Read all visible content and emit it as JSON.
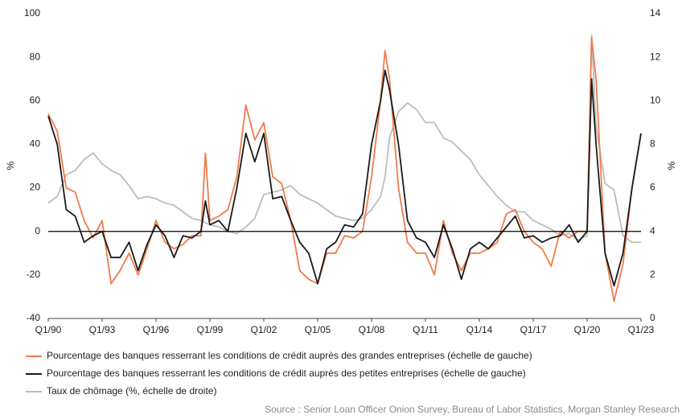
{
  "chart_data": {
    "type": "line",
    "ylabel": "%",
    "y2label": "%",
    "source": "Source : Senior Loan Officer Onion Survey, Bureau of Labor Statistics, Morgan Stanley Research",
    "xlim": [
      1990,
      2023
    ],
    "xticks": [
      {
        "value": 1990,
        "label": "Q1/90"
      },
      {
        "value": 1993,
        "label": "Q1/93"
      },
      {
        "value": 1996,
        "label": "Q1/96"
      },
      {
        "value": 1999,
        "label": "Q1/99"
      },
      {
        "value": 2002,
        "label": "Q1/02"
      },
      {
        "value": 2005,
        "label": "Q1/05"
      },
      {
        "value": 2008,
        "label": "Q1/08"
      },
      {
        "value": 2011,
        "label": "Q1/11"
      },
      {
        "value": 2014,
        "label": "Q1/14"
      },
      {
        "value": 2017,
        "label": "Q1/17"
      },
      {
        "value": 2020,
        "label": "Q1/20"
      },
      {
        "value": 2023,
        "label": "Q1/23"
      }
    ],
    "ylim": [
      -40,
      100
    ],
    "yticks": [
      -40,
      -20,
      0,
      20,
      40,
      60,
      80,
      100
    ],
    "y2lim": [
      0,
      14
    ],
    "y2ticks": [
      0,
      2,
      4,
      6,
      8,
      10,
      12,
      14
    ],
    "reference_line": 0,
    "grid": false,
    "x": [
      1990,
      1990.5,
      1991,
      1991.5,
      1992,
      1992.5,
      1993,
      1993.5,
      1994,
      1994.5,
      1995,
      1995.5,
      1996,
      1996.5,
      1997,
      1997.5,
      1998,
      1998.5,
      1998.75,
      1999,
      1999.5,
      2000,
      2000.5,
      2001,
      2001.5,
      2002,
      2002.5,
      2003,
      2003.5,
      2004,
      2004.5,
      2005,
      2005.5,
      2006,
      2006.5,
      2007,
      2007.5,
      2008,
      2008.5,
      2008.75,
      2009,
      2009.5,
      2010,
      2010.5,
      2011,
      2011.5,
      2012,
      2012.5,
      2013,
      2013.5,
      2014,
      2014.5,
      2015,
      2015.5,
      2016,
      2016.5,
      2017,
      2017.5,
      2018,
      2018.5,
      2019,
      2019.5,
      2020,
      2020.25,
      2020.5,
      2021,
      2021.5,
      2022,
      2022.5,
      2023
    ],
    "series": [
      {
        "name": "Pourcentage des banques resserrant les conditions de crédit auprès des grandes entreprises (échelle de gauche)",
        "color": "#f07b4d",
        "values": [
          54,
          46,
          20,
          18,
          5,
          -3,
          5,
          -24,
          -18,
          -10,
          -20,
          -8,
          5,
          -5,
          -8,
          -6,
          -2,
          -2,
          36,
          5,
          7,
          10,
          25,
          58,
          42,
          50,
          25,
          22,
          5,
          -18,
          -22,
          -24,
          -10,
          -10,
          -2,
          -3,
          0,
          25,
          60,
          83,
          70,
          20,
          -5,
          -10,
          -10,
          -20,
          5,
          -10,
          -18,
          -10,
          -10,
          -8,
          -5,
          8,
          10,
          0,
          -5,
          -8,
          -16,
          0,
          -3,
          0,
          0,
          89,
          70,
          -10,
          -32,
          -15,
          20,
          45
        ]
      },
      {
        "name": "Pourcentage des banques resserrant les conditions de crédit auprès des petites entreprises (échelle de gauche)",
        "color": "#1a1a1a",
        "values": [
          53,
          40,
          10,
          7,
          -5,
          -2,
          0,
          -12,
          -12,
          -5,
          -18,
          -6,
          3,
          -2,
          -12,
          -2,
          -3,
          0,
          14,
          3,
          5,
          0,
          20,
          45,
          32,
          45,
          15,
          16,
          5,
          -5,
          -10,
          -24,
          -8,
          -5,
          3,
          2,
          8,
          40,
          60,
          74,
          65,
          40,
          5,
          -3,
          -5,
          -12,
          3,
          -8,
          -22,
          -8,
          -5,
          -8,
          -3,
          2,
          7,
          -3,
          -2,
          -5,
          -3,
          -2,
          3,
          -5,
          0,
          70,
          40,
          -10,
          -25,
          -10,
          20,
          45
        ]
      },
      {
        "name": "Taux de chômage (%, échelle de droite)",
        "color": "#bdbdbd",
        "axis": "y2",
        "values": [
          5.3,
          5.6,
          6.6,
          6.8,
          7.3,
          7.6,
          7.1,
          6.8,
          6.6,
          6.1,
          5.5,
          5.6,
          5.5,
          5.3,
          5.2,
          4.9,
          4.6,
          4.5,
          4.4,
          4.3,
          4.2,
          4.0,
          3.9,
          4.2,
          4.6,
          5.7,
          5.8,
          5.9,
          6.1,
          5.7,
          5.5,
          5.3,
          5.0,
          4.7,
          4.6,
          4.5,
          4.6,
          5.0,
          5.6,
          6.5,
          8.3,
          9.5,
          9.9,
          9.6,
          9.0,
          9.0,
          8.3,
          8.1,
          7.7,
          7.3,
          6.6,
          6.1,
          5.6,
          5.2,
          4.9,
          4.9,
          4.5,
          4.3,
          4.1,
          3.8,
          3.9,
          3.6,
          3.8,
          13.0,
          8.8,
          6.2,
          5.9,
          3.8,
          3.5,
          3.5
        ]
      }
    ]
  }
}
